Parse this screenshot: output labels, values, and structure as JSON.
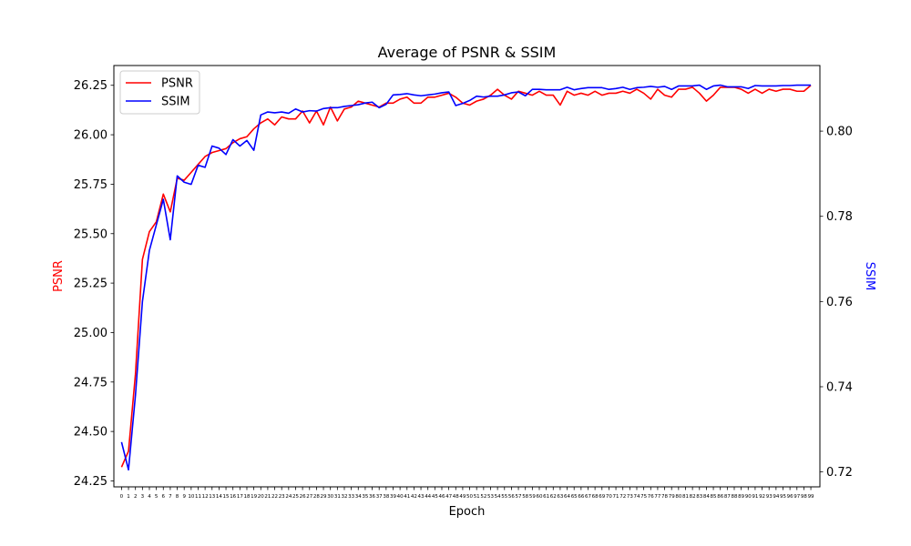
{
  "chart_data": {
    "type": "line",
    "title": "Average of PSNR & SSIM",
    "xlabel": "Epoch",
    "ylabel_left": "PSNR",
    "ylabel_right": "SSIM",
    "left_axis_color": "#ff0000",
    "right_axis_color": "#0000ff",
    "legend_position": "upper-left",
    "grid": false,
    "x": [
      0,
      1,
      2,
      3,
      4,
      5,
      6,
      7,
      8,
      9,
      10,
      11,
      12,
      13,
      14,
      15,
      16,
      17,
      18,
      19,
      20,
      21,
      22,
      23,
      24,
      25,
      26,
      27,
      28,
      29,
      30,
      31,
      32,
      33,
      34,
      35,
      36,
      37,
      38,
      39,
      40,
      41,
      42,
      43,
      44,
      45,
      46,
      47,
      48,
      49,
      50,
      51,
      52,
      53,
      54,
      55,
      56,
      57,
      58,
      59,
      60,
      61,
      62,
      63,
      64,
      65,
      66,
      67,
      68,
      69,
      70,
      71,
      72,
      73,
      74,
      75,
      76,
      77,
      78,
      79,
      80,
      81,
      82,
      83,
      84,
      85,
      86,
      87,
      88,
      89,
      90,
      91,
      92,
      93,
      94,
      95,
      96,
      97,
      98,
      99
    ],
    "x_tick_labels": [
      "0",
      "1",
      "2",
      "3",
      "4",
      "5",
      "6",
      "7",
      "8",
      "9",
      "10",
      "11",
      "12",
      "13",
      "14",
      "15",
      "16",
      "17",
      "18",
      "19",
      "20",
      "21",
      "22",
      "23",
      "24",
      "25",
      "26",
      "27",
      "28",
      "29",
      "30",
      "31",
      "32",
      "33",
      "34",
      "35",
      "36",
      "37",
      "38",
      "39",
      "40",
      "41",
      "42",
      "43",
      "44",
      "45",
      "46",
      "47",
      "48",
      "49",
      "50",
      "51",
      "52",
      "53",
      "54",
      "55",
      "56",
      "57",
      "58",
      "59",
      "60",
      "61",
      "62",
      "63",
      "64",
      "65",
      "66",
      "67",
      "68",
      "69",
      "70",
      "71",
      "72",
      "73",
      "74",
      "75",
      "76",
      "77",
      "78",
      "79",
      "80",
      "81",
      "82",
      "83",
      "84",
      "85",
      "86",
      "87",
      "88",
      "89",
      "90",
      "91",
      "92",
      "93",
      "94",
      "95",
      "96",
      "97",
      "98",
      "99"
    ],
    "ylim_left": [
      24.22,
      26.35
    ],
    "ylim_right": [
      0.7165,
      0.8154
    ],
    "yticks_left": [
      "24.25",
      "24.50",
      "24.75",
      "25.00",
      "25.25",
      "25.50",
      "25.75",
      "26.00",
      "26.25"
    ],
    "yticks_right": [
      "0.72",
      "0.74",
      "0.76",
      "0.78",
      "0.80"
    ],
    "series": [
      {
        "name": "PSNR",
        "axis": "left",
        "color": "#ff0000",
        "values": [
          24.32,
          24.4,
          24.79,
          25.37,
          25.51,
          25.56,
          25.7,
          25.61,
          25.78,
          25.77,
          25.81,
          25.85,
          25.89,
          25.91,
          25.92,
          25.93,
          25.96,
          25.98,
          25.99,
          26.03,
          26.06,
          26.08,
          26.05,
          26.09,
          26.08,
          26.08,
          26.12,
          26.06,
          26.12,
          26.05,
          26.14,
          26.07,
          26.13,
          26.14,
          26.17,
          26.16,
          26.15,
          26.14,
          26.16,
          26.16,
          26.18,
          26.19,
          26.16,
          26.16,
          26.19,
          26.19,
          26.2,
          26.21,
          26.19,
          26.16,
          26.15,
          26.17,
          26.18,
          26.2,
          26.23,
          26.2,
          26.18,
          26.22,
          26.21,
          26.2,
          26.22,
          26.2,
          26.2,
          26.15,
          26.22,
          26.2,
          26.21,
          26.2,
          26.22,
          26.2,
          26.21,
          26.21,
          26.22,
          26.21,
          26.23,
          26.21,
          26.18,
          26.23,
          26.2,
          26.19,
          26.23,
          26.23,
          26.24,
          26.21,
          26.17,
          26.2,
          26.24,
          26.24,
          26.24,
          26.23,
          26.21,
          26.23,
          26.21,
          26.23,
          26.22,
          26.23,
          26.23,
          26.22,
          26.22,
          26.25
        ]
      },
      {
        "name": "SSIM",
        "axis": "right",
        "color": "#0000ff",
        "values": [
          0.727,
          0.7205,
          0.738,
          0.76,
          0.772,
          0.778,
          0.784,
          0.7745,
          0.7895,
          0.788,
          0.7875,
          0.792,
          0.7915,
          0.7965,
          0.796,
          0.7945,
          0.798,
          0.7965,
          0.7978,
          0.7955,
          0.8038,
          0.8045,
          0.8043,
          0.8045,
          0.8042,
          0.8052,
          0.8045,
          0.8048,
          0.8047,
          0.8053,
          0.8055,
          0.8055,
          0.8058,
          0.806,
          0.8062,
          0.8066,
          0.8068,
          0.8055,
          0.8063,
          0.8085,
          0.8086,
          0.8088,
          0.8085,
          0.8083,
          0.8085,
          0.8087,
          0.809,
          0.8092,
          0.806,
          0.8065,
          0.8072,
          0.8082,
          0.808,
          0.8082,
          0.8082,
          0.8085,
          0.809,
          0.8092,
          0.8083,
          0.8098,
          0.8098,
          0.8097,
          0.8097,
          0.8097,
          0.8103,
          0.8097,
          0.81,
          0.8102,
          0.8102,
          0.8102,
          0.8098,
          0.81,
          0.8103,
          0.8098,
          0.8102,
          0.8103,
          0.8105,
          0.8103,
          0.8105,
          0.8098,
          0.8106,
          0.8106,
          0.8106,
          0.8108,
          0.8098,
          0.8106,
          0.8108,
          0.8104,
          0.8104,
          0.8104,
          0.81,
          0.8107,
          0.8106,
          0.8106,
          0.8106,
          0.8107,
          0.8107,
          0.8108,
          0.8108,
          0.8108
        ]
      }
    ]
  }
}
